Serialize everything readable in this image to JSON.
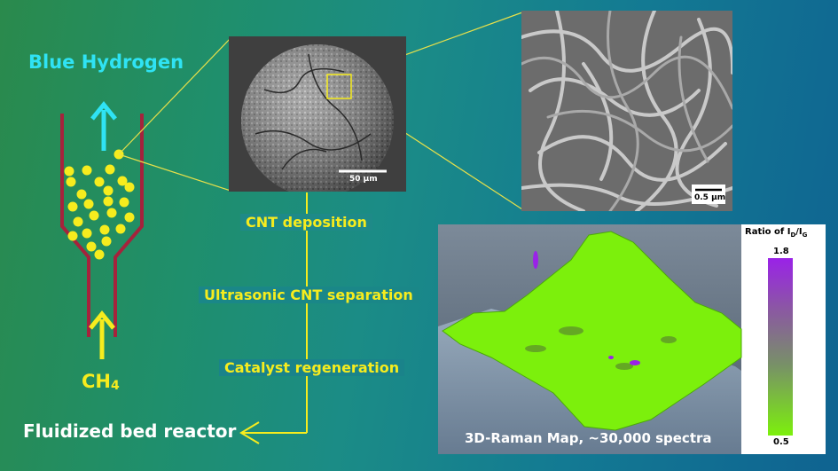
{
  "title": "Blue Hydrogen",
  "feed": {
    "species": "CH",
    "subscript": "4"
  },
  "reactor_label": "Fluidized bed reactor",
  "steps": [
    "CNT deposition",
    "Ultrasonic CNT separation",
    "Catalyst regeneration"
  ],
  "sem_particle": {
    "scale_label": "50 µm"
  },
  "sem_zoom": {
    "scale_label": "0.5 µm"
  },
  "raman": {
    "caption": "3D-Raman Map, ~30,000 spectra",
    "legend_title": "Ratio of I",
    "legend_title_sub1": "D",
    "legend_title_sep": "/I",
    "legend_title_sub2": "G",
    "legend_max": "1.8",
    "legend_min": "0.5"
  },
  "colors": {
    "reactor_wall": "#a5233c",
    "particle": "#f6ec1e",
    "hydrogen_arrow": "#2fe3f4",
    "process_line": "#f6ec1e",
    "raman_surface": "#7cf00c",
    "raman_high": "#9a22e8"
  }
}
